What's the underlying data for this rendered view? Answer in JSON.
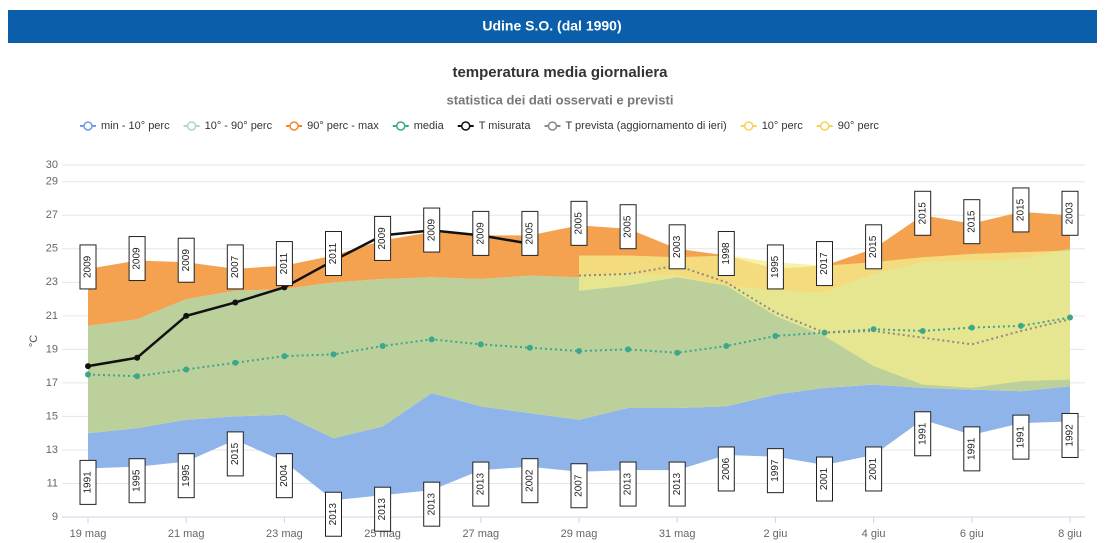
{
  "header": {
    "title": "Udine S.O. (dal 1990)"
  },
  "chart_data": {
    "type": "area-range",
    "title": "temperatura media giornaliera",
    "subtitle": "statistica dei dati osservati e previsti",
    "y_label": "°C",
    "categories": [
      "19 mag",
      null,
      "21 mag",
      null,
      "23 mag",
      null,
      "25 mag",
      null,
      "27 mag",
      null,
      "29 mag",
      null,
      "31 mag",
      null,
      "2 giu",
      null,
      "4 giu",
      null,
      "6 giu",
      null,
      "8 giu"
    ],
    "ylim": [
      9,
      30
    ],
    "yticks": [
      9,
      11,
      13,
      15,
      17,
      19,
      21,
      23,
      25,
      27,
      29,
      30
    ],
    "grid": true,
    "series": [
      {
        "name": "min - 10° perc",
        "kind": "range",
        "color": "#8fb4ea",
        "marker": "#6d9de3",
        "low": [
          11.9,
          12.0,
          12.3,
          13.6,
          12.3,
          10.0,
          10.3,
          10.6,
          11.8,
          12.0,
          11.7,
          11.8,
          11.8,
          12.7,
          12.6,
          12.1,
          12.7,
          14.8,
          13.9,
          14.6,
          14.7
        ],
        "high": [
          14.0,
          14.3,
          14.8,
          15.0,
          15.1,
          13.7,
          14.4,
          16.4,
          15.6,
          15.2,
          14.8,
          15.5,
          15.5,
          15.6,
          16.3,
          16.7,
          16.9,
          16.7,
          16.6,
          16.5,
          16.8
        ]
      },
      {
        "name": "10° - 90° perc",
        "kind": "range",
        "color": "#bcd09c",
        "marker": "#a8d8c8",
        "low": [
          14.0,
          14.3,
          14.8,
          15.0,
          15.1,
          13.7,
          14.4,
          16.4,
          15.6,
          15.2,
          14.8,
          15.5,
          15.5,
          15.6,
          16.3,
          16.7,
          16.9,
          16.7,
          16.6,
          16.5,
          16.8
        ],
        "high": [
          20.4,
          20.8,
          22.0,
          22.5,
          22.6,
          23.0,
          23.2,
          23.3,
          23.2,
          23.4,
          23.3,
          23.5,
          23.4,
          22.8,
          22.5,
          22.4,
          23.5,
          24.2,
          24.3,
          24.4,
          25.0
        ]
      },
      {
        "name": "90° perc - max",
        "kind": "range",
        "color": "#f4a24f",
        "marker": "#ef8a2c",
        "low": [
          20.4,
          20.8,
          22.0,
          22.5,
          22.6,
          23.0,
          23.2,
          23.3,
          23.2,
          23.4,
          23.3,
          23.5,
          23.4,
          22.8,
          22.5,
          22.4,
          23.5,
          24.2,
          24.3,
          24.4,
          25.0
        ],
        "high": [
          23.8,
          24.3,
          24.2,
          23.8,
          24.0,
          24.6,
          25.5,
          26.0,
          25.8,
          25.8,
          26.4,
          26.2,
          25.0,
          24.6,
          23.8,
          24.0,
          25.0,
          27.0,
          26.5,
          27.2,
          27.0
        ]
      },
      {
        "name": "media",
        "kind": "line",
        "color": "#3aa88a",
        "dash": true,
        "dots": true,
        "values": [
          17.5,
          17.4,
          17.8,
          18.2,
          18.6,
          18.7,
          19.2,
          19.6,
          19.3,
          19.1,
          18.9,
          19.0,
          18.8,
          19.2,
          19.8,
          20.0,
          20.2,
          20.1,
          20.3,
          20.4,
          20.9
        ]
      },
      {
        "name": "T misurata",
        "kind": "line",
        "color": "#111111",
        "dash": false,
        "dots": true,
        "values": [
          18.0,
          18.5,
          21.0,
          21.8,
          22.7,
          24.3,
          25.8,
          26.1,
          25.8,
          25.3,
          null,
          null,
          null,
          null,
          null,
          null,
          null,
          null,
          null,
          null,
          null
        ]
      },
      {
        "name": "T prevista (aggiornamento di ieri)",
        "kind": "line",
        "color": "#8a8a8a",
        "dash": true,
        "dots": false,
        "values": [
          null,
          null,
          null,
          null,
          null,
          null,
          null,
          null,
          null,
          null,
          23.4,
          23.5,
          24.0,
          23.0,
          21.2,
          20.0,
          20.1,
          19.7,
          19.3,
          20.1,
          20.8
        ]
      },
      {
        "name": "10° perc",
        "kind": "band-low",
        "color": "#f4ee8e",
        "marker": "#f2d45a",
        "values": [
          null,
          null,
          null,
          null,
          null,
          null,
          null,
          null,
          null,
          null,
          22.5,
          22.8,
          23.3,
          22.8,
          21.0,
          19.8,
          18.0,
          16.9,
          16.7,
          17.1,
          17.2
        ]
      },
      {
        "name": "90° perc",
        "kind": "band-high",
        "color": "#f4ee8e",
        "marker": "#f2d45a",
        "values": [
          null,
          null,
          null,
          null,
          null,
          null,
          null,
          null,
          null,
          null,
          24.6,
          24.6,
          24.5,
          24.6,
          24.2,
          24.0,
          24.2,
          24.5,
          24.7,
          24.8,
          24.9
        ]
      }
    ],
    "max_years": [
      "2009",
      "2009",
      "2009",
      "2007",
      "2011",
      "2011",
      "2009",
      "2009",
      "2009",
      "2005",
      "2005",
      "2005",
      "2003",
      "1998",
      "1995",
      "2017",
      "2015",
      "2015",
      "2015",
      "2015",
      "2003"
    ],
    "min_years": [
      "1991",
      "1995",
      "1995",
      "2015",
      "2004",
      "2013",
      "2013",
      "2013",
      "2013",
      "2002",
      "2007",
      "2013",
      "2013",
      "2006",
      "1997",
      "2001",
      "2001",
      "1991",
      "1991",
      "1991",
      "1992"
    ]
  }
}
